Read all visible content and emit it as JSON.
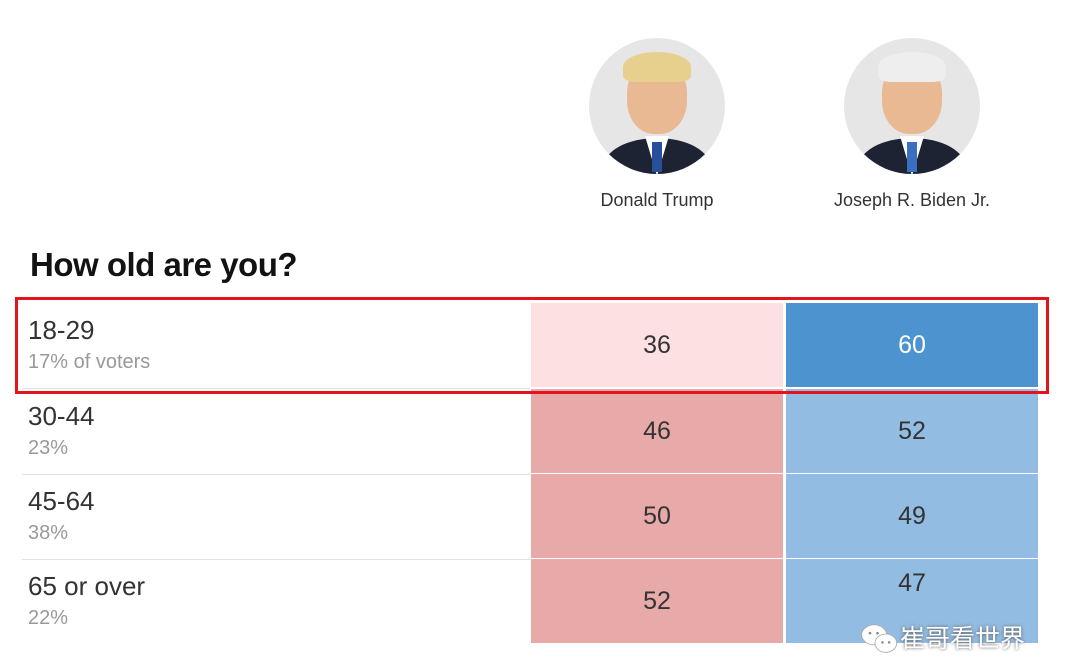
{
  "candidates": [
    {
      "name": "Donald Trump",
      "color": "#e8a9a9",
      "highlight_color": "#fde0e2"
    },
    {
      "name": "Joseph R. Biden Jr.",
      "color": "#93bce2",
      "highlight_color": "#4d93cf"
    }
  ],
  "chart_data": {
    "type": "table",
    "title": "How old are you?",
    "columns": [
      "Donald Trump",
      "Joseph R. Biden Jr."
    ],
    "rows": [
      {
        "label": "18-29",
        "share": "17% of voters",
        "values": [
          36,
          60
        ],
        "highlighted": true
      },
      {
        "label": "30-44",
        "share": "23%",
        "values": [
          46,
          52
        ]
      },
      {
        "label": "45-64",
        "share": "38%",
        "values": [
          50,
          49
        ]
      },
      {
        "label": "65 or over",
        "share": "22%",
        "values": [
          52,
          47
        ]
      }
    ]
  },
  "watermark": "崔哥看世界"
}
